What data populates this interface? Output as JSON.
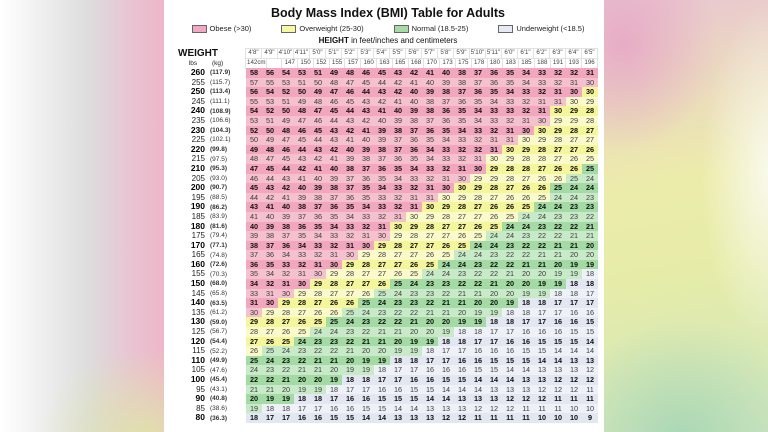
{
  "colors": {
    "obese": {
      "swatch": "#f0a9c1",
      "strong": "#f2a7bf",
      "soft": "#f5c1ce"
    },
    "overweight": {
      "swatch": "#f7f7a6",
      "strong": "#f5f59c",
      "soft": "#fafaca"
    },
    "normal": {
      "swatch": "#a6dba6",
      "strong": "#a4dba4",
      "soft": "#c8eac8"
    },
    "underweight": {
      "swatch": "#e7eaf4",
      "strong": "#e3e7f1",
      "soft": "#eff1f8"
    }
  },
  "legend": [
    {
      "key": "obese",
      "label": "Obese (>30)"
    },
    {
      "key": "overweight",
      "label": "Overweight (25-30)"
    },
    {
      "key": "normal",
      "label": "Normal (18.5-25)"
    },
    {
      "key": "underweight",
      "label": "Underweight (<18.5)"
    }
  ],
  "caption": {
    "bold": "HEIGHT",
    "rest": " in feet/inches and centimeters"
  },
  "table_labels": {
    "weight": "WEIGHT",
    "lbs": "lbs",
    "kg": "(kg)"
  },
  "chart_data": {
    "type": "table",
    "title": "Body Mass Index (BMI) Table for Adults",
    "columns_ft": [
      "4'8\"",
      "4'9\"",
      "4'10\"",
      "4'11\"",
      "5'0\"",
      "5'1\"",
      "5'2\"",
      "5'3\"",
      "5'4\"",
      "5'5\"",
      "5'6\"",
      "5'7\"",
      "5'8\"",
      "5'9\"",
      "5'10\"",
      "5'11\"",
      "6'0\"",
      "6'1\"",
      "6'2\"",
      "6'3\"",
      "6'4\"",
      "6'5\""
    ],
    "columns_cm": [
      "142cm",
      "",
      "147",
      "150",
      "152",
      "155",
      "157",
      "160",
      "163",
      "165",
      "168",
      "170",
      "173",
      "175",
      "178",
      "180",
      "183",
      "185",
      "188",
      "191",
      "193",
      "196"
    ],
    "columns_in": [
      56,
      57,
      58,
      59,
      60,
      61,
      62,
      63,
      64,
      65,
      66,
      67,
      68,
      69,
      70,
      71,
      72,
      73,
      74,
      75,
      76,
      77
    ],
    "categories": {
      "obese": ">30",
      "overweight": "25-30",
      "normal": "18.5-25",
      "underweight": "<18.5"
    },
    "rows": [
      {
        "lbs": 260,
        "kg": "(117.9)",
        "bmi": [
          58,
          56,
          54,
          53,
          51,
          49,
          48,
          46,
          45,
          43,
          42,
          41,
          40,
          38,
          37,
          36,
          35,
          34,
          33,
          32,
          32,
          31
        ]
      },
      {
        "lbs": 255,
        "kg": "(115.7)",
        "bmi": [
          57,
          55,
          53,
          51,
          50,
          48,
          47,
          45,
          44,
          42,
          41,
          40,
          39,
          38,
          37,
          36,
          35,
          34,
          33,
          32,
          31,
          30
        ]
      },
      {
        "lbs": 250,
        "kg": "(113.4)",
        "bmi": [
          56,
          54,
          52,
          50,
          49,
          47,
          46,
          44,
          43,
          42,
          40,
          39,
          38,
          37,
          36,
          35,
          34,
          33,
          32,
          31,
          30,
          30
        ]
      },
      {
        "lbs": 245,
        "kg": "(111.1)",
        "bmi": [
          55,
          53,
          51,
          49,
          48,
          46,
          45,
          43,
          42,
          41,
          40,
          38,
          37,
          36,
          35,
          34,
          33,
          32,
          31,
          31,
          30,
          29
        ]
      },
      {
        "lbs": 240,
        "kg": "(108.9)",
        "bmi": [
          54,
          52,
          50,
          48,
          47,
          45,
          44,
          43,
          41,
          40,
          39,
          38,
          36,
          35,
          34,
          33,
          33,
          32,
          31,
          30,
          29,
          28
        ]
      },
      {
        "lbs": 235,
        "kg": "(106.6)",
        "bmi": [
          53,
          51,
          49,
          47,
          46,
          44,
          43,
          42,
          40,
          39,
          38,
          37,
          36,
          35,
          34,
          33,
          32,
          31,
          30,
          29,
          29,
          28
        ]
      },
      {
        "lbs": 230,
        "kg": "(104.3)",
        "bmi": [
          52,
          50,
          48,
          46,
          45,
          43,
          42,
          41,
          39,
          38,
          37,
          36,
          35,
          34,
          33,
          32,
          31,
          30,
          30,
          29,
          28,
          27
        ]
      },
      {
        "lbs": 225,
        "kg": "(102.1)",
        "bmi": [
          50,
          49,
          47,
          45,
          44,
          43,
          41,
          40,
          39,
          37,
          36,
          35,
          34,
          33,
          32,
          31,
          31,
          30,
          29,
          28,
          27,
          27
        ]
      },
      {
        "lbs": 220,
        "kg": "(99.8)",
        "bmi": [
          49,
          48,
          46,
          44,
          43,
          42,
          40,
          39,
          38,
          37,
          36,
          34,
          33,
          32,
          32,
          31,
          30,
          29,
          28,
          27,
          27,
          26
        ]
      },
      {
        "lbs": 215,
        "kg": "(97.5)",
        "bmi": [
          48,
          47,
          45,
          43,
          42,
          41,
          39,
          38,
          37,
          36,
          35,
          34,
          33,
          32,
          31,
          30,
          29,
          28,
          28,
          27,
          26,
          25
        ]
      },
      {
        "lbs": 210,
        "kg": "(95.3)",
        "bmi": [
          47,
          45,
          44,
          42,
          41,
          40,
          38,
          37,
          36,
          35,
          34,
          33,
          32,
          31,
          30,
          29,
          28,
          28,
          27,
          26,
          26,
          25
        ]
      },
      {
        "lbs": 205,
        "kg": "(93.0)",
        "bmi": [
          46,
          44,
          43,
          41,
          40,
          39,
          37,
          36,
          35,
          34,
          33,
          32,
          31,
          30,
          29,
          29,
          28,
          27,
          26,
          26,
          25,
          24
        ]
      },
      {
        "lbs": 200,
        "kg": "(90.7)",
        "bmi": [
          45,
          43,
          42,
          40,
          39,
          38,
          37,
          35,
          34,
          33,
          32,
          31,
          30,
          30,
          29,
          28,
          27,
          26,
          26,
          25,
          24,
          24
        ]
      },
      {
        "lbs": 195,
        "kg": "(88.5)",
        "bmi": [
          44,
          42,
          41,
          39,
          38,
          37,
          36,
          35,
          33,
          32,
          31,
          31,
          30,
          29,
          28,
          27,
          26,
          26,
          25,
          24,
          24,
          23
        ]
      },
      {
        "lbs": 190,
        "kg": "(86.2)",
        "bmi": [
          43,
          41,
          40,
          38,
          37,
          36,
          35,
          34,
          33,
          32,
          31,
          30,
          29,
          28,
          27,
          26,
          26,
          25,
          24,
          24,
          23,
          23
        ]
      },
      {
        "lbs": 185,
        "kg": "(83.9)",
        "bmi": [
          41,
          40,
          39,
          37,
          36,
          35,
          34,
          33,
          32,
          31,
          30,
          29,
          28,
          27,
          27,
          26,
          25,
          24,
          24,
          23,
          23,
          22
        ]
      },
      {
        "lbs": 180,
        "kg": "(81.6)",
        "bmi": [
          40,
          39,
          38,
          36,
          35,
          34,
          33,
          32,
          31,
          30,
          29,
          28,
          27,
          27,
          26,
          25,
          24,
          24,
          23,
          22,
          22,
          21
        ]
      },
      {
        "lbs": 175,
        "kg": "(79.4)",
        "bmi": [
          39,
          38,
          37,
          35,
          34,
          33,
          32,
          31,
          30,
          29,
          28,
          27,
          27,
          26,
          25,
          24,
          24,
          23,
          22,
          22,
          21,
          21
        ]
      },
      {
        "lbs": 170,
        "kg": "(77.1)",
        "bmi": [
          38,
          37,
          36,
          34,
          33,
          32,
          31,
          30,
          29,
          28,
          27,
          27,
          26,
          25,
          24,
          24,
          23,
          22,
          22,
          21,
          21,
          20
        ]
      },
      {
        "lbs": 165,
        "kg": "(74.8)",
        "bmi": [
          37,
          36,
          34,
          33,
          32,
          31,
          30,
          29,
          28,
          27,
          27,
          26,
          25,
          24,
          24,
          23,
          22,
          22,
          21,
          21,
          20,
          20
        ]
      },
      {
        "lbs": 160,
        "kg": "(72.6)",
        "bmi": [
          36,
          35,
          33,
          32,
          31,
          30,
          29,
          28,
          27,
          27,
          26,
          25,
          24,
          24,
          23,
          22,
          22,
          21,
          21,
          20,
          19,
          19
        ]
      },
      {
        "lbs": 155,
        "kg": "(70.3)",
        "bmi": [
          35,
          34,
          32,
          31,
          30,
          29,
          28,
          27,
          27,
          26,
          25,
          24,
          24,
          23,
          22,
          22,
          21,
          20,
          20,
          19,
          19,
          18
        ]
      },
      {
        "lbs": 150,
        "kg": "(68.0)",
        "bmi": [
          34,
          32,
          31,
          30,
          29,
          28,
          27,
          27,
          26,
          25,
          24,
          23,
          23,
          22,
          22,
          21,
          20,
          20,
          19,
          19,
          18,
          18
        ]
      },
      {
        "lbs": 145,
        "kg": "(65.8)",
        "bmi": [
          33,
          31,
          30,
          29,
          28,
          27,
          27,
          26,
          25,
          24,
          23,
          23,
          22,
          21,
          21,
          20,
          20,
          19,
          19,
          18,
          18,
          17
        ]
      },
      {
        "lbs": 140,
        "kg": "(63.5)",
        "bmi": [
          31,
          30,
          29,
          28,
          27,
          26,
          26,
          25,
          24,
          23,
          23,
          22,
          21,
          21,
          20,
          20,
          19,
          18,
          18,
          17,
          17,
          17
        ]
      },
      {
        "lbs": 135,
        "kg": "(61.2)",
        "bmi": [
          30,
          29,
          28,
          27,
          26,
          26,
          25,
          24,
          23,
          22,
          22,
          21,
          21,
          20,
          19,
          19,
          18,
          18,
          17,
          17,
          16,
          16
        ]
      },
      {
        "lbs": 130,
        "kg": "(59.0)",
        "bmi": [
          29,
          28,
          27,
          26,
          25,
          25,
          24,
          23,
          22,
          22,
          21,
          20,
          20,
          19,
          19,
          18,
          18,
          17,
          17,
          16,
          16,
          15
        ]
      },
      {
        "lbs": 125,
        "kg": "(56.7)",
        "bmi": [
          28,
          27,
          26,
          25,
          24,
          24,
          23,
          22,
          21,
          21,
          20,
          20,
          19,
          18,
          18,
          17,
          17,
          16,
          16,
          16,
          15,
          15
        ]
      },
      {
        "lbs": 120,
        "kg": "(54.4)",
        "bmi": [
          27,
          26,
          25,
          24,
          23,
          23,
          22,
          21,
          21,
          20,
          19,
          19,
          18,
          18,
          17,
          17,
          16,
          16,
          15,
          15,
          15,
          14
        ]
      },
      {
        "lbs": 115,
        "kg": "(52.2)",
        "bmi": [
          26,
          25,
          24,
          23,
          22,
          22,
          21,
          20,
          20,
          19,
          19,
          18,
          17,
          17,
          16,
          16,
          16,
          15,
          15,
          14,
          14,
          14
        ]
      },
      {
        "lbs": 110,
        "kg": "(49.9)",
        "bmi": [
          25,
          24,
          23,
          22,
          21,
          21,
          20,
          19,
          19,
          18,
          18,
          17,
          17,
          16,
          16,
          15,
          15,
          15,
          14,
          14,
          13,
          13
        ]
      },
      {
        "lbs": 105,
        "kg": "(47.6)",
        "bmi": [
          24,
          23,
          22,
          21,
          21,
          20,
          19,
          19,
          18,
          17,
          17,
          16,
          16,
          16,
          15,
          15,
          14,
          14,
          13,
          13,
          13,
          12
        ]
      },
      {
        "lbs": 100,
        "kg": "(45.4)",
        "bmi": [
          22,
          22,
          21,
          20,
          20,
          19,
          18,
          18,
          17,
          17,
          16,
          16,
          15,
          15,
          14,
          14,
          14,
          13,
          13,
          12,
          12,
          12
        ]
      },
      {
        "lbs": 95,
        "kg": "(43.1)",
        "bmi": [
          21,
          21,
          20,
          19,
          19,
          18,
          17,
          17,
          16,
          16,
          15,
          15,
          14,
          14,
          14,
          13,
          13,
          13,
          12,
          12,
          12,
          11
        ]
      },
      {
        "lbs": 90,
        "kg": "(40.8)",
        "bmi": [
          20,
          19,
          19,
          18,
          18,
          17,
          16,
          16,
          15,
          15,
          15,
          14,
          14,
          13,
          13,
          13,
          12,
          12,
          12,
          11,
          11,
          11
        ]
      },
      {
        "lbs": 85,
        "kg": "(38.6)",
        "bmi": [
          19,
          18,
          18,
          17,
          17,
          16,
          16,
          15,
          15,
          14,
          14,
          13,
          13,
          13,
          12,
          12,
          12,
          11,
          11,
          11,
          10,
          10
        ]
      },
      {
        "lbs": 80,
        "kg": "(36.3)",
        "bmi": [
          18,
          17,
          17,
          16,
          16,
          15,
          15,
          14,
          14,
          13,
          13,
          13,
          12,
          12,
          11,
          11,
          11,
          11,
          10,
          10,
          10,
          9
        ]
      }
    ]
  }
}
